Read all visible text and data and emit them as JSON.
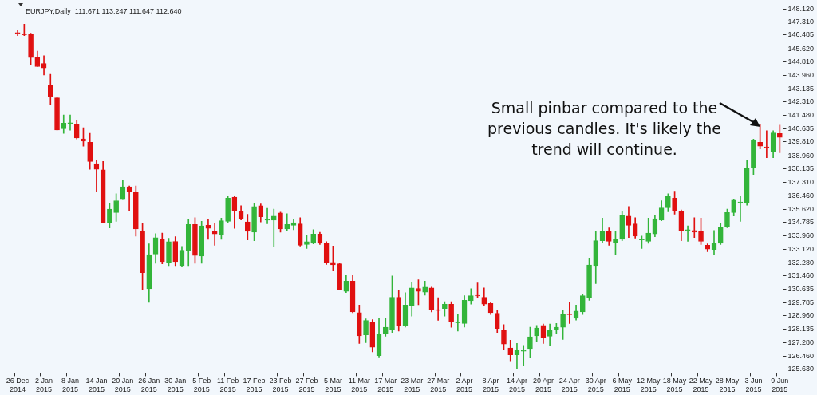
{
  "chart_data": {
    "type": "candlestick",
    "title": "EURJPY,Daily  111.671 113.247 111.647 112.640",
    "categories": [
      "26 Dec 2014",
      null,
      null,
      null,
      "2 Jan 2015",
      null,
      null,
      null,
      "8 Jan 2015",
      null,
      null,
      null,
      "14 Jan 2015",
      null,
      null,
      null,
      "20 Jan 2015",
      null,
      null,
      null,
      "26 Jan 2015",
      null,
      null,
      null,
      "30 Jan 2015",
      null,
      null,
      null,
      "5 Feb 2015",
      null,
      null,
      null,
      "11 Feb 2015",
      null,
      null,
      null,
      "17 Feb 2015",
      null,
      null,
      null,
      "23 Feb 2015",
      null,
      null,
      null,
      "27 Feb 2015",
      null,
      null,
      null,
      "5 Mar 2015",
      null,
      null,
      null,
      "11 Mar 2015",
      null,
      null,
      null,
      "17 Mar 2015",
      null,
      null,
      null,
      "23 Mar 2015",
      null,
      null,
      null,
      "27 Mar 2015",
      null,
      null,
      null,
      "2 Apr 2015",
      null,
      null,
      null,
      "8 Apr 2015",
      null,
      null,
      null,
      "14 Apr 2015",
      null,
      null,
      null,
      "20 Apr 2015",
      null,
      null,
      null,
      "24 Apr 2015",
      null,
      null,
      null,
      "30 Apr 2015",
      null,
      null,
      null,
      "6 May 2015",
      null,
      null,
      null,
      "12 May 2015",
      null,
      null,
      null,
      "18 May 2015",
      null,
      null,
      null,
      "22 May 2015",
      null,
      null,
      null,
      "28 May 2015",
      null,
      null,
      null,
      "3 Jun 2015",
      null,
      null,
      null,
      "9 Jun 2015"
    ],
    "ohlc": [
      [
        146.63,
        146.77,
        146.44,
        146.58
      ],
      [
        146.52,
        147.16,
        146.44,
        146.5
      ],
      [
        146.52,
        146.6,
        144.6,
        145.08
      ],
      [
        145.08,
        145.48,
        144.51,
        144.51
      ],
      [
        144.71,
        145.19,
        143.99,
        144.43
      ],
      [
        143.36,
        144.03,
        142.14,
        142.62
      ],
      [
        142.56,
        142.62,
        140.56,
        140.56
      ],
      [
        140.63,
        141.5,
        140.35,
        140.99
      ],
      [
        140.96,
        141.5,
        140.54,
        140.98
      ],
      [
        140.92,
        141.18,
        140.0,
        140.06
      ],
      [
        140.0,
        140.7,
        139.55,
        139.86
      ],
      [
        139.79,
        140.35,
        138.1,
        138.59
      ],
      [
        138.46,
        138.66,
        136.74,
        138.1
      ],
      [
        138.07,
        138.59,
        134.74,
        134.74
      ],
      [
        134.77,
        135.99,
        134.45,
        135.62
      ],
      [
        135.41,
        136.58,
        134.86,
        136.15
      ],
      [
        136.21,
        137.43,
        136.21,
        137.01
      ],
      [
        137.01,
        137.06,
        135.54,
        136.69
      ],
      [
        136.69,
        137.06,
        133.94,
        134.38
      ],
      [
        134.26,
        134.74,
        130.57,
        131.66
      ],
      [
        130.65,
        133.45,
        129.8,
        132.78
      ],
      [
        132.82,
        134.09,
        132.25,
        133.84
      ],
      [
        133.74,
        134.13,
        132.21,
        132.34
      ],
      [
        132.3,
        133.81,
        132.09,
        133.59
      ],
      [
        133.61,
        133.9,
        132.09,
        132.34
      ],
      [
        132.09,
        133.3,
        132.06,
        133.06
      ],
      [
        133.01,
        134.98,
        132.09,
        134.66
      ],
      [
        134.66,
        135.09,
        132.25,
        132.73
      ],
      [
        132.69,
        134.86,
        132.25,
        134.58
      ],
      [
        134.61,
        134.98,
        133.74,
        134.42
      ],
      [
        134.23,
        134.74,
        133.37,
        134.07
      ],
      [
        134.02,
        135.06,
        133.74,
        134.9
      ],
      [
        134.86,
        136.42,
        134.74,
        136.31
      ],
      [
        136.37,
        136.42,
        134.42,
        135.54
      ],
      [
        135.51,
        135.83,
        134.95,
        135.03
      ],
      [
        134.82,
        135.3,
        133.7,
        134.23
      ],
      [
        134.18,
        135.99,
        133.65,
        135.78
      ],
      [
        135.83,
        135.94,
        134.82,
        135.14
      ],
      [
        134.93,
        135.67,
        134.71,
        134.95
      ],
      [
        134.93,
        135.62,
        133.26,
        135.19
      ],
      [
        135.38,
        135.43,
        134.18,
        134.38
      ],
      [
        134.38,
        135.34,
        134.27,
        134.66
      ],
      [
        134.61,
        134.98,
        134.34,
        134.77
      ],
      [
        134.7,
        135.09,
        133.32,
        133.37
      ],
      [
        133.42,
        133.97,
        133.17,
        133.59
      ],
      [
        133.49,
        134.34,
        133.45,
        134.07
      ],
      [
        134.07,
        134.18,
        133.42,
        133.49
      ],
      [
        133.49,
        133.59,
        132.17,
        132.3
      ],
      [
        132.3,
        133.32,
        131.77,
        132.14
      ],
      [
        132.21,
        132.25,
        130.57,
        130.6
      ],
      [
        130.49,
        131.5,
        130.41,
        131.13
      ],
      [
        131.13,
        131.53,
        129.16,
        129.21
      ],
      [
        129.16,
        129.64,
        127.24,
        127.72
      ],
      [
        127.77,
        128.78,
        127.29,
        128.68
      ],
      [
        128.57,
        128.73,
        126.72,
        127.01
      ],
      [
        126.48,
        128.81,
        126.34,
        127.82
      ],
      [
        127.84,
        128.81,
        127.69,
        128.25
      ],
      [
        128.13,
        131.45,
        127.93,
        130.12
      ],
      [
        130.12,
        130.54,
        128.01,
        128.36
      ],
      [
        128.33,
        130.41,
        128.26,
        129.64
      ],
      [
        129.58,
        131.05,
        128.94,
        130.7
      ],
      [
        130.67,
        131.21,
        129.66,
        130.49
      ],
      [
        130.44,
        131.13,
        130.25,
        130.76
      ],
      [
        130.7,
        130.76,
        129.21,
        129.37
      ],
      [
        129.32,
        130.09,
        128.68,
        129.3
      ],
      [
        129.42,
        129.85,
        128.94,
        129.69
      ],
      [
        129.69,
        129.85,
        128.25,
        128.57
      ],
      [
        128.52,
        129.09,
        128.01,
        128.54
      ],
      [
        128.49,
        130.22,
        128.26,
        129.93
      ],
      [
        129.9,
        130.65,
        129.69,
        130.22
      ],
      [
        130.22,
        131.02,
        130.09,
        130.2
      ],
      [
        130.12,
        130.7,
        129.61,
        129.69
      ],
      [
        129.74,
        129.8,
        129.05,
        129.16
      ],
      [
        129.13,
        129.32,
        127.93,
        128.17
      ],
      [
        128.08,
        128.41,
        126.88,
        127.2
      ],
      [
        126.96,
        127.45,
        126.11,
        126.53
      ],
      [
        126.53,
        127.24,
        125.68,
        126.81
      ],
      [
        126.76,
        127.12,
        125.84,
        126.85
      ],
      [
        126.92,
        128.25,
        126.33,
        127.65
      ],
      [
        127.72,
        128.36,
        127.36,
        128.2
      ],
      [
        128.36,
        128.45,
        127.24,
        127.6
      ],
      [
        127.69,
        128.45,
        127.08,
        128.08
      ],
      [
        128.08,
        128.49,
        127.84,
        128.25
      ],
      [
        128.25,
        129.32,
        127.49,
        129.05
      ],
      [
        129.05,
        129.8,
        128.49,
        129.03
      ],
      [
        128.81,
        129.64,
        128.7,
        129.26
      ],
      [
        129.21,
        130.28,
        129.05,
        130.22
      ],
      [
        130.12,
        132.57,
        129.93,
        132.14
      ],
      [
        132.09,
        134.26,
        130.97,
        133.65
      ],
      [
        133.65,
        135.06,
        133.54,
        134.26
      ],
      [
        134.26,
        134.45,
        133.37,
        133.61
      ],
      [
        133.54,
        134.23,
        132.78,
        133.74
      ],
      [
        133.74,
        135.46,
        133.65,
        135.22
      ],
      [
        135.19,
        135.78,
        133.85,
        134.61
      ],
      [
        134.7,
        135.09,
        133.81,
        133.94
      ],
      [
        133.7,
        133.94,
        133.17,
        133.72
      ],
      [
        133.61,
        135.06,
        133.49,
        134.13
      ],
      [
        134.07,
        135.25,
        133.9,
        135.03
      ],
      [
        134.93,
        136.15,
        134.9,
        135.7
      ],
      [
        135.7,
        136.58,
        135.46,
        136.42
      ],
      [
        136.31,
        136.74,
        135.3,
        135.51
      ],
      [
        135.46,
        135.57,
        133.65,
        134.26
      ],
      [
        134.26,
        134.58,
        133.61,
        134.34
      ],
      [
        134.29,
        135.09,
        133.85,
        134.18
      ],
      [
        134.23,
        135.06,
        133.42,
        133.61
      ],
      [
        133.37,
        133.45,
        132.97,
        133.13
      ],
      [
        133.1,
        134.29,
        132.78,
        133.49
      ],
      [
        133.49,
        134.74,
        133.42,
        134.5
      ],
      [
        134.55,
        135.62,
        134.46,
        135.41
      ],
      [
        135.41,
        136.26,
        135.19,
        136.18
      ],
      [
        136.02,
        136.42,
        134.86,
        136.04
      ],
      [
        135.99,
        138.66,
        135.86,
        138.18
      ],
      [
        138.18,
        139.99,
        137.78,
        139.9
      ],
      [
        139.79,
        140.91,
        139.38,
        139.55
      ],
      [
        139.51,
        140.51,
        138.83,
        139.42
      ],
      [
        139.19,
        140.51,
        138.83,
        140.38
      ],
      [
        140.34,
        140.86,
        139.14,
        140.1
      ]
    ],
    "colors": [
      "#e01010",
      "#e01010",
      "#e01010",
      "#e01010",
      "#e01010",
      "#e01010",
      "#e01010",
      "#33b53a",
      "#33b53a",
      "#e01010",
      "#e01010",
      "#e01010",
      "#e01010",
      "#e01010",
      "#33b53a",
      "#33b53a",
      "#33b53a",
      "#e01010",
      "#e01010",
      "#e01010",
      "#33b53a",
      "#33b53a",
      "#e01010",
      "#33b53a",
      "#e01010",
      "#33b53a",
      "#33b53a",
      "#e01010",
      "#33b53a",
      "#e01010",
      "#e01010",
      "#33b53a",
      "#33b53a",
      "#e01010",
      "#e01010",
      "#e01010",
      "#33b53a",
      "#e01010",
      "#33b53a",
      "#33b53a",
      "#e01010",
      "#33b53a",
      "#33b53a",
      "#e01010",
      "#33b53a",
      "#33b53a",
      "#e01010",
      "#e01010",
      "#e01010",
      "#e01010",
      "#33b53a",
      "#e01010",
      "#e01010",
      "#33b53a",
      "#e01010",
      "#33b53a",
      "#33b53a",
      "#33b53a",
      "#e01010",
      "#33b53a",
      "#33b53a",
      "#e01010",
      "#33b53a",
      "#e01010",
      "#e01010",
      "#33b53a",
      "#e01010",
      "#33b53a",
      "#33b53a",
      "#33b53a",
      "#e01010",
      "#e01010",
      "#e01010",
      "#e01010",
      "#e01010",
      "#e01010",
      "#33b53a",
      "#33b53a",
      "#33b53a",
      "#33b53a",
      "#e01010",
      "#33b53a",
      "#33b53a",
      "#33b53a",
      "#e01010",
      "#33b53a",
      "#33b53a",
      "#33b53a",
      "#33b53a",
      "#33b53a",
      "#e01010",
      "#33b53a",
      "#33b53a",
      "#e01010",
      "#e01010",
      "#33b53a",
      "#33b53a",
      "#33b53a",
      "#33b53a",
      "#33b53a",
      "#e01010",
      "#e01010",
      "#33b53a",
      "#e01010",
      "#e01010",
      "#e01010",
      "#33b53a",
      "#33b53a",
      "#33b53a",
      "#33b53a",
      "#33b53a",
      "#33b53a",
      "#33b53a",
      "#e01010",
      "#e01010",
      "#33b53a",
      "#e01010"
    ],
    "ylim": [
      125.4,
      148.3
    ],
    "yticks": [
      {
        "value": 148.12,
        "label": "148.120"
      },
      {
        "value": 147.31,
        "label": "147.310"
      },
      {
        "value": 146.485,
        "label": "146.485"
      },
      {
        "value": 145.62,
        "label": "145.620"
      },
      {
        "value": 144.81,
        "label": "144.810"
      },
      {
        "value": 143.96,
        "label": "143.960"
      },
      {
        "value": 143.135,
        "label": "143.135"
      },
      {
        "value": 142.31,
        "label": "142.310"
      },
      {
        "value": 141.48,
        "label": "141.480"
      },
      {
        "value": 140.635,
        "label": "140.635"
      },
      {
        "value": 139.81,
        "label": "139.810"
      },
      {
        "value": 138.96,
        "label": "138.960"
      },
      {
        "value": 138.135,
        "label": "138.135"
      },
      {
        "value": 137.31,
        "label": "137.310"
      },
      {
        "value": 136.46,
        "label": "136.460"
      },
      {
        "value": 135.62,
        "label": "135.620"
      },
      {
        "value": 134.785,
        "label": "134.785"
      },
      {
        "value": 133.96,
        "label": "133.960"
      },
      {
        "value": 133.12,
        "label": "133.120"
      },
      {
        "value": 132.28,
        "label": "132.280"
      },
      {
        "value": 131.46,
        "label": "131.460"
      },
      {
        "value": 130.635,
        "label": "130.635"
      },
      {
        "value": 129.785,
        "label": "129.785"
      },
      {
        "value": 128.96,
        "label": "128.960"
      },
      {
        "value": 128.135,
        "label": "128.135"
      },
      {
        "value": 127.28,
        "label": "127.280"
      },
      {
        "value": 126.46,
        "label": "126.460"
      },
      {
        "value": 125.63,
        "label": "125.630"
      }
    ],
    "grid": false,
    "legend": false,
    "annotations": [
      "Small pinbar compared to the previous candles. It's likely the trend will continue."
    ]
  }
}
